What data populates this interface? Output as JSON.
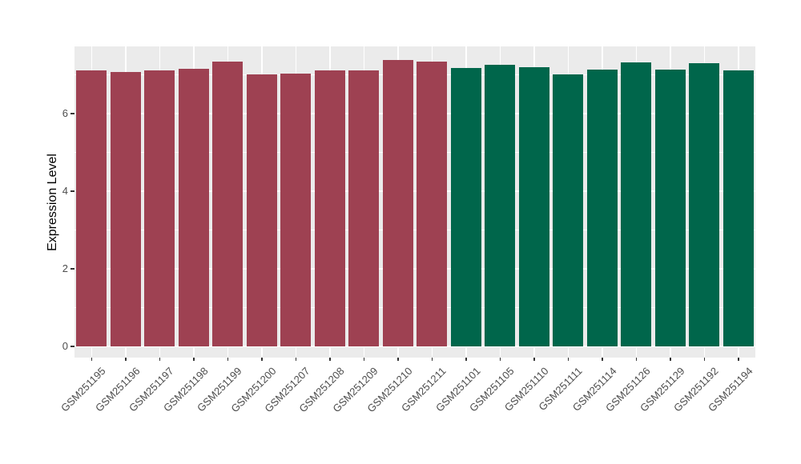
{
  "chart_data": {
    "type": "bar",
    "title": "",
    "xlabel": "",
    "ylabel": "Expression Level",
    "legend_position": "none",
    "grid": true,
    "ylim": [
      -0.39,
      7.73
    ],
    "yticks": [
      0,
      2,
      4,
      6
    ],
    "minor_gridlines": [
      1,
      3,
      5,
      7
    ],
    "categories": [
      "GSM251195",
      "GSM251196",
      "GSM251197",
      "GSM251198",
      "GSM251199",
      "GSM251200",
      "GSM251207",
      "GSM251208",
      "GSM251209",
      "GSM251210",
      "GSM251211",
      "GSM251101",
      "GSM251105",
      "GSM251110",
      "GSM251111",
      "GSM251114",
      "GSM251126",
      "GSM251129",
      "GSM251192",
      "GSM251194"
    ],
    "values": [
      7.11,
      7.07,
      7.11,
      7.16,
      7.34,
      7.01,
      7.03,
      7.11,
      7.12,
      7.38,
      7.33,
      7.18,
      7.26,
      7.2,
      7.01,
      7.13,
      7.32,
      7.14,
      7.29,
      7.12
    ],
    "groups": [
      "group1",
      "group1",
      "group1",
      "group1",
      "group1",
      "group1",
      "group1",
      "group1",
      "group1",
      "group1",
      "group1",
      "group2",
      "group2",
      "group2",
      "group2",
      "group2",
      "group2",
      "group2",
      "group2",
      "group2"
    ],
    "group_colors": {
      "group1": "#9E4152",
      "group2": "#00664B"
    },
    "colors": {
      "panel_background": "#EBEBEB",
      "gridline": "#FFFFFF",
      "axis_text": "#4D4D4D",
      "tick_mark": "#333333",
      "figure_background": "#FFFFFF"
    }
  }
}
